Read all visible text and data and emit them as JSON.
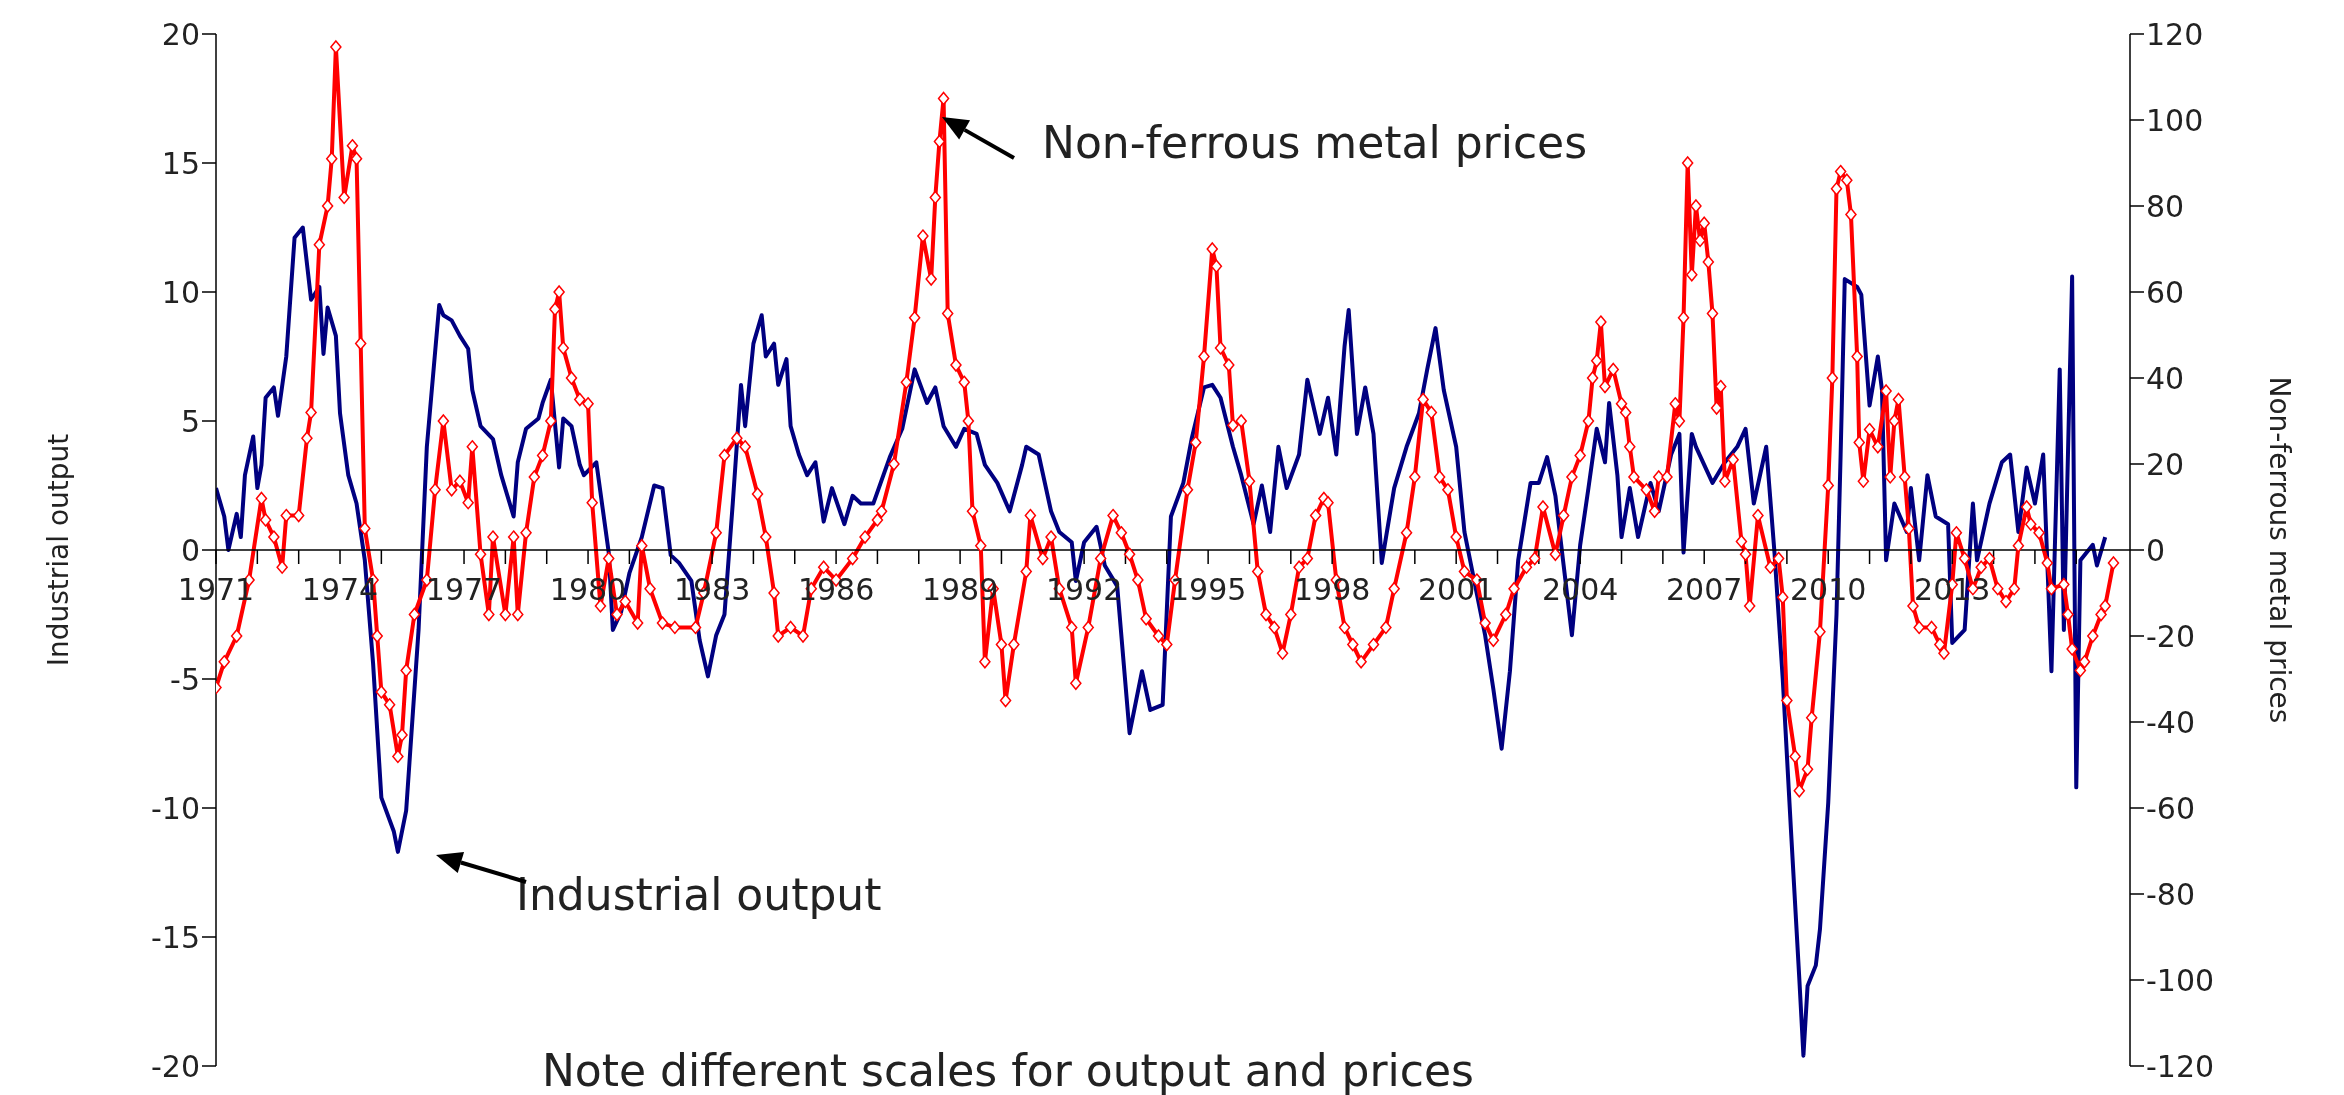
{
  "chart_data": {
    "type": "line",
    "ylabel": "Industrial output",
    "y2label": "Non-ferrous metal prices",
    "annotations": [
      "Non-ferrous metal prices",
      "Industrial output",
      "Note different scales for output and prices"
    ],
    "xlim": [
      1971,
      2017.3
    ],
    "xticks": [
      1971,
      {
        "value": 1972,
        "label": null
      },
      {
        "value": 1973,
        "label": null
      },
      1974,
      {
        "value": 1975,
        "label": null
      },
      {
        "value": 1976,
        "label": null
      },
      1977,
      {
        "value": 1978,
        "label": null
      },
      {
        "value": 1979,
        "label": null
      },
      1980,
      {
        "value": 1981,
        "label": null
      },
      {
        "value": 1982,
        "label": null
      },
      1983,
      {
        "value": 1984,
        "label": null
      },
      {
        "value": 1985,
        "label": null
      },
      1986,
      {
        "value": 1987,
        "label": null
      },
      {
        "value": 1988,
        "label": null
      },
      1989,
      {
        "value": 1990,
        "label": null
      },
      {
        "value": 1991,
        "label": null
      },
      1992,
      {
        "value": 1993,
        "label": null
      },
      {
        "value": 1994,
        "label": null
      },
      1995,
      {
        "value": 1996,
        "label": null
      },
      {
        "value": 1997,
        "label": null
      },
      1998,
      {
        "value": 1999,
        "label": null
      },
      {
        "value": 2000,
        "label": null
      },
      2001,
      {
        "value": 2002,
        "label": null
      },
      {
        "value": 2003,
        "label": null
      },
      2004,
      {
        "value": 2005,
        "label": null
      },
      {
        "value": 2006,
        "label": null
      },
      2007,
      {
        "value": 2008,
        "label": null
      },
      {
        "value": 2009,
        "label": null
      },
      2010,
      {
        "value": 2011,
        "label": null
      },
      {
        "value": 2012,
        "label": null
      },
      2013,
      {
        "value": 2014,
        "label": null
      },
      {
        "value": 2015,
        "label": null
      },
      {
        "value": 2016,
        "label": null
      }
    ],
    "ylim": [
      -20,
      20
    ],
    "yticks": [
      -20,
      -15,
      -10,
      -5,
      0,
      5,
      10,
      15,
      20
    ],
    "y2lim": [
      -120,
      120
    ],
    "y2ticks": [
      -120,
      -100,
      -80,
      -60,
      -40,
      -20,
      0,
      20,
      40,
      60,
      80,
      100,
      120
    ],
    "line_style": "solid",
    "series": [
      {
        "color": "#000080",
        "marker": "none",
        "x": [
          1971.0,
          1971.2,
          1971.3,
          1971.5,
          1971.6,
          1971.7,
          1971.9,
          1972.0,
          1972.1,
          1972.2,
          1972.4,
          1972.5,
          1972.7,
          1972.9,
          1973.1,
          1973.3,
          1973.5,
          1973.6,
          1973.7,
          1973.9,
          1974.0,
          1974.2,
          1974.4,
          1974.6,
          1974.8,
          1975.0,
          1975.3,
          1975.4,
          1975.6,
          1975.9,
          1976.1,
          1976.4,
          1976.5,
          1976.7,
          1976.9,
          1977.1,
          1977.2,
          1977.4,
          1977.7,
          1977.9,
          1978.2,
          1978.3,
          1978.5,
          1978.8,
          1978.9,
          1979.1,
          1979.3,
          1979.4,
          1979.6,
          1979.8,
          1979.9,
          1980.2,
          1980.5,
          1980.6,
          1980.8,
          1981.0,
          1981.3,
          1981.6,
          1981.8,
          1982.0,
          1982.2,
          1982.5,
          1982.7,
          1982.9,
          1983.1,
          1983.3,
          1983.5,
          1983.7,
          1983.8,
          1984.0,
          1984.2,
          1984.3,
          1984.5,
          1984.6,
          1984.8,
          1984.9,
          1985.1,
          1985.3,
          1985.5,
          1985.7,
          1985.9,
          1986.2,
          1986.4,
          1986.6,
          1986.9,
          1987.3,
          1987.6,
          1987.9,
          1988.2,
          1988.4,
          1988.6,
          1988.9,
          1989.1,
          1989.4,
          1989.6,
          1989.9,
          1990.2,
          1990.5,
          1990.6,
          1990.9,
          1991.2,
          1991.4,
          1991.7,
          1991.8,
          1992.0,
          1992.3,
          1992.5,
          1992.8,
          1993.1,
          1993.4,
          1993.6,
          1993.9,
          1994.1,
          1994.4,
          1994.6,
          1994.9,
          1995.1,
          1995.3,
          1995.6,
          1995.8,
          1996.1,
          1996.3,
          1996.5,
          1996.7,
          1996.9,
          1997.2,
          1997.4,
          1997.7,
          1997.9,
          1998.1,
          1998.3,
          1998.4,
          1998.6,
          1998.8,
          1999.0,
          1999.2,
          1999.5,
          1999.8,
          2000.1,
          2000.3,
          2000.5,
          2000.7,
          2001.0,
          2001.2,
          2001.5,
          2001.7,
          2001.9,
          2002.1,
          2002.3,
          2002.5,
          2002.8,
          2003.0,
          2003.2,
          2003.4,
          2003.6,
          2003.8,
          2004.0,
          2004.2,
          2004.4,
          2004.6,
          2004.7,
          2004.9,
          2005.0,
          2005.2,
          2005.4,
          2005.7,
          2005.9,
          2006.2,
          2006.4,
          2006.5,
          2006.7,
          2006.8,
          2007.2,
          2007.5,
          2007.8,
          2008.0,
          2008.2,
          2008.5,
          2008.7,
          2008.9,
          2009.1,
          2009.3,
          2009.4,
          2009.5,
          2009.7,
          2009.8,
          2010.0,
          2010.2,
          2010.3,
          2010.4,
          2010.7,
          2010.8,
          2011.0,
          2011.2,
          2011.3,
          2011.4,
          2011.6,
          2011.9,
          2012.0,
          2012.2,
          2012.4,
          2012.6,
          2012.9,
          2013.0,
          2013.3,
          2013.5,
          2013.6,
          2013.9,
          2014.2,
          2014.4,
          2014.6,
          2014.8,
          2015.0,
          2015.2,
          2015.4,
          2015.6,
          2015.7,
          2015.9,
          2016.0,
          2016.1,
          2016.4,
          2016.5,
          2016.7
        ],
        "values": [
          2.4,
          1.3,
          0,
          1.4,
          0.5,
          2.9,
          4.4,
          2.4,
          3.3,
          5.9,
          6.3,
          5.2,
          7.5,
          12.1,
          12.5,
          9.7,
          10.2,
          7.6,
          9.4,
          8.3,
          5.3,
          2.9,
          1.8,
          -0.4,
          -4.4,
          -9.6,
          -10.9,
          -11.7,
          -10.1,
          -3.1,
          4.0,
          9.5,
          9.1,
          8.9,
          8.3,
          7.8,
          6.2,
          4.8,
          4.3,
          2.9,
          1.3,
          3.4,
          4.7,
          5.1,
          5.7,
          6.6,
          3.2,
          5.1,
          4.8,
          3.3,
          2.9,
          3.4,
          -0.1,
          -3.1,
          -2.4,
          -0.9,
          0.5,
          2.5,
          2.4,
          -0.2,
          -0.5,
          -1.2,
          -3.5,
          -4.9,
          -3.3,
          -2.5,
          1.8,
          6.4,
          4.8,
          8.0,
          9.1,
          7.5,
          8.0,
          6.4,
          7.4,
          4.8,
          3.7,
          2.9,
          3.4,
          1.1,
          2.4,
          1.0,
          2.1,
          1.8,
          1.8,
          3.6,
          4.7,
          7.0,
          5.7,
          6.3,
          4.8,
          4.0,
          4.7,
          4.5,
          3.3,
          2.6,
          1.5,
          3.3,
          4.0,
          3.7,
          1.5,
          0.7,
          0.3,
          -1.2,
          0.3,
          0.9,
          -0.6,
          -1.4,
          -7.1,
          -4.7,
          -6.2,
          -6.0,
          1.3,
          2.6,
          4.3,
          6.3,
          6.4,
          5.9,
          4.0,
          2.9,
          1.0,
          2.5,
          0.7,
          4.0,
          2.4,
          3.7,
          6.6,
          4.5,
          5.9,
          3.7,
          7.9,
          9.3,
          4.5,
          6.3,
          4.5,
          -0.5,
          2.4,
          4.0,
          5.3,
          7.0,
          8.6,
          6.2,
          4.0,
          0.7,
          -1.7,
          -3.3,
          -5.4,
          -7.7,
          -4.7,
          -0.4,
          2.6,
          2.6,
          3.6,
          2.1,
          -0.6,
          -3.3,
          0.2,
          2.4,
          4.7,
          3.4,
          5.7,
          2.9,
          0.5,
          2.4,
          0.5,
          2.6,
          1.5,
          3.7,
          4.5,
          -0.1,
          4.5,
          4.0,
          2.6,
          3.4,
          4.0,
          4.7,
          1.8,
          4.0,
          -0.1,
          -5.0,
          -10.9,
          -16.6,
          -19.6,
          -16.9,
          -16.1,
          -14.7,
          -9.8,
          -2.5,
          3.7,
          10.5,
          10.2,
          9.9,
          5.6,
          7.5,
          6.2,
          -0.4,
          1.8,
          0.7,
          2.4,
          -0.4,
          2.9,
          1.3,
          1.0,
          -3.6,
          -3.1,
          1.8,
          -0.4,
          1.8,
          3.4,
          3.7,
          0.7,
          3.2,
          1.8,
          3.7,
          -4.7,
          7.0,
          -3.1,
          10.6,
          -9.2,
          -0.4,
          0.2,
          -0.6,
          0.5
        ]
      },
      {
        "color": "#ff0000",
        "marker": "diamond",
        "axis": "y2",
        "x": [
          1971.0,
          1971.2,
          1971.5,
          1971.8,
          1972.1,
          1972.2,
          1972.4,
          1972.6,
          1972.7,
          1973.0,
          1973.2,
          1973.3,
          1973.5,
          1973.7,
          1973.8,
          1973.9,
          1974.1,
          1974.3,
          1974.4,
          1974.5,
          1974.6,
          1974.8,
          1974.9,
          1975.0,
          1975.2,
          1975.4,
          1975.5,
          1975.6,
          1975.8,
          1976.1,
          1976.3,
          1976.5,
          1976.7,
          1976.9,
          1977.1,
          1977.2,
          1977.4,
          1977.6,
          1977.7,
          1978.0,
          1978.2,
          1978.3,
          1978.5,
          1978.7,
          1978.9,
          1979.1,
          1979.2,
          1979.3,
          1979.4,
          1979.6,
          1979.8,
          1980.0,
          1980.1,
          1980.3,
          1980.5,
          1980.7,
          1980.9,
          1981.2,
          1981.3,
          1981.5,
          1981.8,
          1982.1,
          1982.6,
          1982.8,
          1983.1,
          1983.3,
          1983.6,
          1983.8,
          1984.1,
          1984.3,
          1984.5,
          1984.6,
          1984.9,
          1985.2,
          1985.4,
          1985.7,
          1986.0,
          1986.4,
          1986.7,
          1987.0,
          1987.1,
          1987.4,
          1987.7,
          1987.9,
          1988.1,
          1988.3,
          1988.4,
          1988.5,
          1988.6,
          1988.7,
          1988.9,
          1989.1,
          1989.2,
          1989.3,
          1989.5,
          1989.6,
          1989.8,
          1990.0,
          1990.1,
          1990.3,
          1990.6,
          1990.7,
          1991.0,
          1991.2,
          1991.4,
          1991.7,
          1991.8,
          1992.1,
          1992.4,
          1992.7,
          1992.9,
          1993.1,
          1993.3,
          1993.5,
          1993.8,
          1994.0,
          1994.2,
          1994.5,
          1994.7,
          1994.9,
          1995.1,
          1995.2,
          1995.3,
          1995.5,
          1995.6,
          1995.8,
          1996.0,
          1996.2,
          1996.4,
          1996.6,
          1996.8,
          1997.0,
          1997.2,
          1997.4,
          1997.6,
          1997.8,
          1997.9,
          1998.1,
          1998.3,
          1998.5,
          1998.7,
          1999.0,
          1999.3,
          1999.5,
          1999.8,
          2000.0,
          2000.2,
          2000.4,
          2000.6,
          2000.8,
          2001.0,
          2001.2,
          2001.5,
          2001.7,
          2001.9,
          2002.2,
          2002.4,
          2002.7,
          2002.9,
          2003.1,
          2003.4,
          2003.6,
          2003.8,
          2004.0,
          2004.2,
          2004.3,
          2004.4,
          2004.5,
          2004.6,
          2004.8,
          2005.0,
          2005.1,
          2005.2,
          2005.3,
          2005.6,
          2005.8,
          2005.9,
          2006.1,
          2006.3,
          2006.4,
          2006.5,
          2006.6,
          2006.7,
          2006.8,
          2006.9,
          2007.0,
          2007.1,
          2007.2,
          2007.3,
          2007.4,
          2007.5,
          2007.7,
          2007.9,
          2008.0,
          2008.1,
          2008.3,
          2008.6,
          2008.8,
          2008.9,
          2009.0,
          2009.2,
          2009.3,
          2009.5,
          2009.6,
          2009.8,
          2010.0,
          2010.1,
          2010.2,
          2010.3,
          2010.45,
          2010.55,
          2010.7,
          2010.75,
          2010.85,
          2011.0,
          2011.2,
          2011.4,
          2011.5,
          2011.6,
          2011.7,
          2011.85,
          2011.95,
          2012.05,
          2012.2,
          2012.5,
          2012.7,
          2012.8,
          2013.0,
          2013.1,
          2013.3,
          2013.5,
          2013.7,
          2013.9,
          2014.1,
          2014.3,
          2014.5,
          2014.6,
          2014.8,
          2014.9,
          2015.1,
          2015.3,
          2015.4,
          2015.7,
          2015.8,
          2015.9,
          2016.1,
          2016.2,
          2016.4,
          2016.6,
          2016.7,
          2016.9
        ],
        "values": [
          -32,
          -26,
          -20,
          -7,
          12,
          7,
          3,
          -4,
          8,
          8,
          26,
          32,
          71,
          80,
          91,
          117,
          82,
          94,
          91,
          48,
          5,
          -7,
          -20,
          -33,
          -36,
          -48,
          -43,
          -28,
          -15,
          -7,
          14,
          30,
          14,
          16,
          11,
          24,
          -1,
          -15,
          3,
          -15,
          3,
          -15,
          4,
          17,
          22,
          30,
          56,
          60,
          47,
          40,
          35,
          34,
          11,
          -13,
          -2,
          -15,
          -12,
          -17,
          1,
          -9,
          -17,
          -18,
          -18,
          -10,
          4,
          22,
          26,
          24,
          13,
          3,
          -10,
          -20,
          -18,
          -20,
          -9,
          -4,
          -7,
          -2,
          3,
          7,
          9,
          20,
          39,
          54,
          73,
          63,
          82,
          95,
          105,
          55,
          43,
          39,
          30,
          9,
          1,
          -26,
          -9,
          -22,
          -35,
          -22,
          -5,
          8,
          -2,
          3,
          -9,
          -18,
          -31,
          -18,
          -2,
          8,
          4,
          -1,
          -7,
          -16,
          -20,
          -22,
          -7,
          14,
          25,
          45,
          70,
          66,
          47,
          43,
          29,
          30,
          16,
          -5,
          -15,
          -18,
          -24,
          -15,
          -4,
          -2,
          8,
          12,
          11,
          -7,
          -18,
          -22,
          -26,
          -22,
          -18,
          -9,
          4,
          17,
          35,
          32,
          17,
          14,
          3,
          -5,
          -7,
          -17,
          -21,
          -15,
          -9,
          -4,
          -2,
          10,
          -1,
          8,
          17,
          22,
          30,
          40,
          44,
          53,
          38,
          42,
          34,
          32,
          24,
          17,
          14,
          9,
          17,
          17,
          34,
          30,
          54,
          90,
          64,
          80,
          72,
          76,
          67,
          55,
          33,
          38,
          16,
          21,
          2,
          -1,
          -13,
          8,
          -4,
          -2,
          -11,
          -35,
          -48,
          -56,
          -51,
          -39,
          -19,
          15,
          40,
          84,
          88,
          86,
          78,
          45,
          25,
          16,
          28,
          24,
          37,
          17,
          30,
          35,
          17,
          5,
          -13,
          -18,
          -18,
          -22,
          -24,
          -8,
          4,
          -2,
          -9,
          -4,
          -2,
          -9,
          -12,
          -9,
          1,
          10,
          6,
          4,
          -3,
          -9,
          -8,
          -15,
          -23,
          -28,
          -26,
          -20,
          -15,
          -13,
          -3
        ]
      }
    ]
  }
}
